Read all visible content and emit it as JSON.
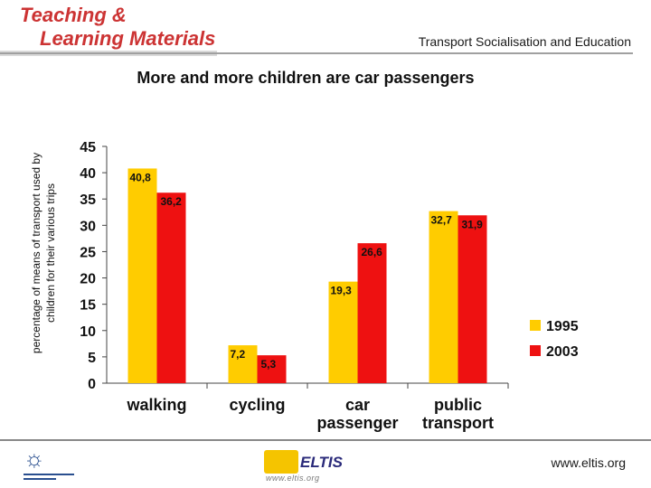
{
  "header": {
    "brand_line1": "Teaching &",
    "brand_line2": "Learning Materials",
    "subtitle": "Transport Socialisation and Education"
  },
  "footer": {
    "eltis_word": "ELTIS",
    "eltis_url": "www.eltis.org",
    "website": "www.eltis.org"
  },
  "colors": {
    "brand": "#cc3333",
    "series_1995": "#ffcc00",
    "series_2003": "#ee1111"
  },
  "chart_data": {
    "type": "bar",
    "title": "More and more children are car passengers",
    "ylabel_line1": "percentage of means of transport used by",
    "ylabel_line2": "children for their various trips",
    "xlabel": "",
    "ylim": [
      0,
      45
    ],
    "yticks": [
      0,
      5,
      10,
      15,
      20,
      25,
      30,
      35,
      40,
      45
    ],
    "categories": [
      [
        "walking"
      ],
      [
        "cycling"
      ],
      [
        "car",
        "passenger"
      ],
      [
        "public",
        "transport"
      ]
    ],
    "series": [
      {
        "name": "1995",
        "values": [
          40.8,
          7.2,
          19.3,
          32.7
        ],
        "labels": [
          "40,8",
          "7,2",
          "19,3",
          "32,7"
        ],
        "color": "#ffcc00"
      },
      {
        "name": "2003",
        "values": [
          36.2,
          5.3,
          26.6,
          31.9
        ],
        "labels": [
          "36,2",
          "5,3",
          "26,6",
          "31,9"
        ],
        "color": "#ee1111"
      }
    ],
    "legend": "right",
    "grid": false
  }
}
